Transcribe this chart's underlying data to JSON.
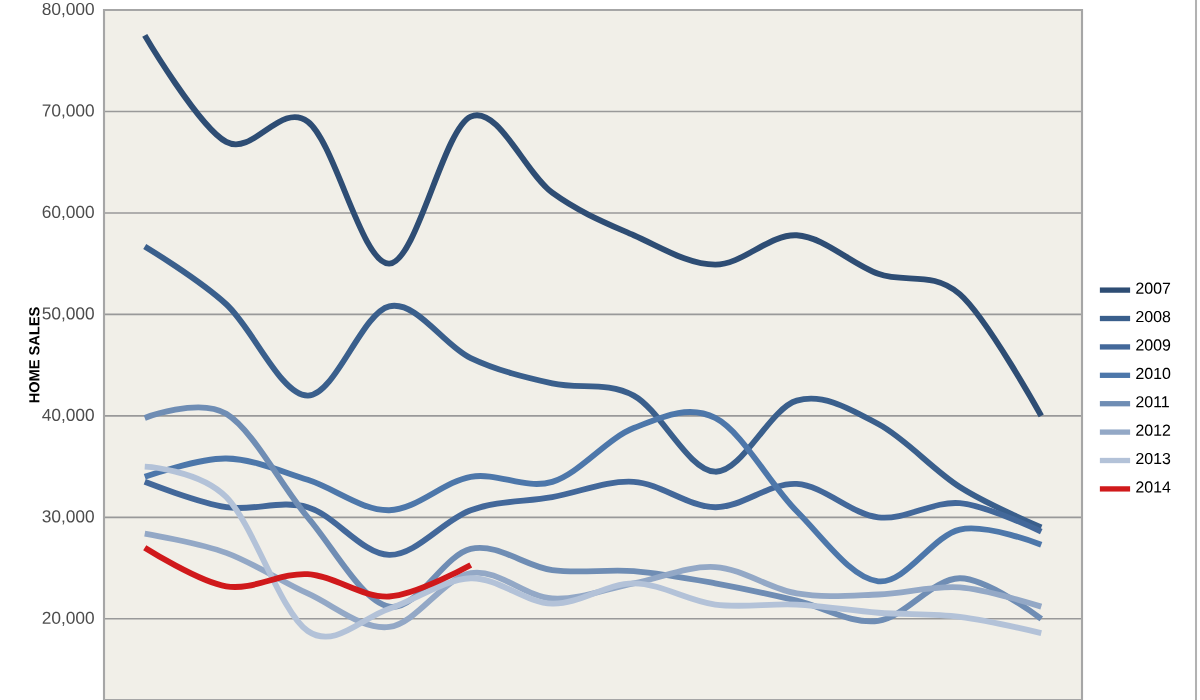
{
  "chart_data": {
    "type": "line",
    "ylabel": "HOME SALES",
    "categories": [
      null,
      null,
      null,
      null,
      null,
      null,
      null,
      null,
      null,
      null,
      null,
      null
    ],
    "series": [
      {
        "name": "2007",
        "color": "#2e4d74",
        "values": [
          77500,
          67000,
          69000,
          55000,
          69500,
          62000,
          57800,
          54900,
          57800,
          54000,
          52000,
          40000
        ]
      },
      {
        "name": "2008",
        "color": "#3a5f8c",
        "values": [
          56700,
          51000,
          42000,
          50800,
          45700,
          43200,
          42000,
          34500,
          41500,
          39200,
          33000,
          29000
        ]
      },
      {
        "name": "2009",
        "color": "#43689a",
        "values": [
          33500,
          31000,
          31000,
          26300,
          30700,
          32000,
          33500,
          31000,
          33300,
          30000,
          31400,
          28600
        ]
      },
      {
        "name": "2010",
        "color": "#4d77aa",
        "values": [
          34000,
          35800,
          33700,
          30700,
          34000,
          33500,
          38800,
          39800,
          30600,
          23700,
          28800,
          27300
        ]
      },
      {
        "name": "2011",
        "color": "#6f8db4",
        "values": [
          39800,
          40200,
          30000,
          21200,
          26900,
          24800,
          24700,
          23500,
          21800,
          19800,
          24000,
          20000
        ]
      },
      {
        "name": "2012",
        "color": "#93a8c6",
        "values": [
          28400,
          26500,
          22500,
          19200,
          24500,
          22000,
          23500,
          25100,
          22500,
          22400,
          23100,
          21200
        ]
      },
      {
        "name": "2013",
        "color": "#b3c2d8",
        "values": [
          35000,
          32000,
          18800,
          21000,
          24000,
          21500,
          23500,
          21400,
          21400,
          20600,
          20200,
          18600
        ]
      },
      {
        "name": "2014",
        "color": "#d0191b",
        "values": [
          27000,
          23200,
          24400,
          22200,
          25300,
          null,
          null,
          null,
          null,
          null,
          null,
          null
        ]
      }
    ],
    "ylim": [
      12000,
      80000
    ],
    "yticks": [
      {
        "value": 20000,
        "label": "20,000"
      },
      {
        "value": 30000,
        "label": "30,000"
      },
      {
        "value": 40000,
        "label": "40,000"
      },
      {
        "value": 50000,
        "label": "50,000"
      },
      {
        "value": 60000,
        "label": "60,000"
      },
      {
        "value": 70000,
        "label": "70,000"
      },
      {
        "value": 80000,
        "label": "80,000"
      }
    ],
    "grid": "y",
    "legend": "right",
    "marker": "none",
    "line_style": "solid"
  }
}
